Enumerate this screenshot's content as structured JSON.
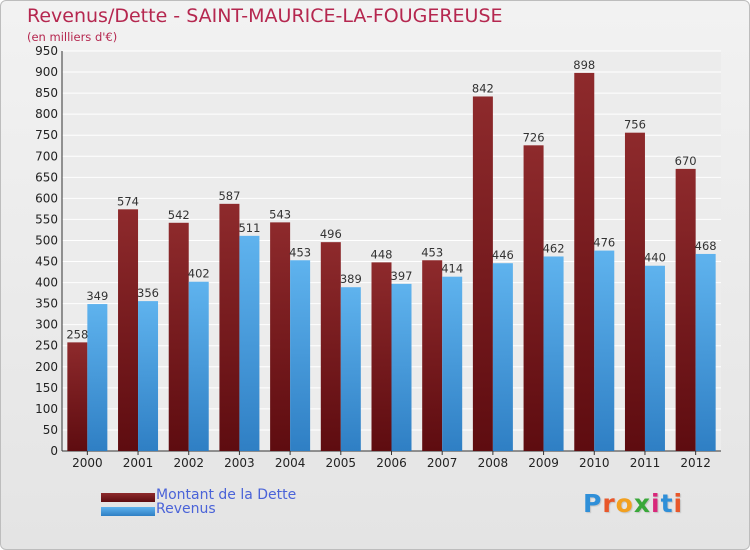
{
  "header": {
    "title": "Revenus/Dette - SAINT-MAURICE-LA-FOUGEREUSE",
    "subtitle": "(en milliers d'€)"
  },
  "colors": {
    "dette": "#7a1a1c",
    "revenus": "#4aa3e3"
  },
  "chart_data": {
    "type": "bar",
    "categories": [
      "2000",
      "2001",
      "2002",
      "2003",
      "2004",
      "2005",
      "2006",
      "2007",
      "2008",
      "2009",
      "2010",
      "2011",
      "2012"
    ],
    "series": [
      {
        "name": "Montant de la Dette",
        "values": [
          258,
          574,
          542,
          587,
          543,
          496,
          448,
          453,
          842,
          726,
          898,
          756,
          670
        ]
      },
      {
        "name": "Revenus",
        "values": [
          349,
          356,
          402,
          511,
          453,
          389,
          397,
          414,
          446,
          462,
          476,
          440,
          468
        ]
      }
    ],
    "ylim": [
      0,
      950
    ],
    "yticks": [
      0,
      50,
      100,
      150,
      200,
      250,
      300,
      350,
      400,
      450,
      500,
      550,
      600,
      650,
      700,
      750,
      800,
      850,
      900,
      950
    ],
    "grid": true,
    "legend_position": "bottom-left"
  },
  "legend": [
    {
      "label": "Montant de la Dette",
      "icon": "dark-red-swatch"
    },
    {
      "label": "Revenus",
      "icon": "blue-swatch"
    }
  ],
  "logo": {
    "text": "Proxiti",
    "letters": [
      "P",
      "r",
      "o",
      "x",
      "i",
      "t",
      "i"
    ],
    "letter_colors": [
      "#2f8fd8",
      "#e8572a",
      "#f2a01f",
      "#3aa83a",
      "#d8287a",
      "#2f8fd8",
      "#e8572a"
    ]
  }
}
